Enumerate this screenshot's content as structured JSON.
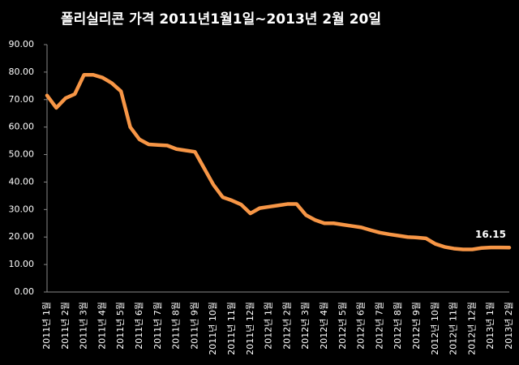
{
  "chart_data": {
    "type": "line",
    "title": "폴리실리콘 가격    2011년1월1일~2013년 2월 20일",
    "categories": [
      "2011년 1월",
      null,
      "2011년 2월",
      null,
      "2011년 3월",
      null,
      "2011년 4월",
      null,
      "2011년 5월",
      null,
      "2011년 6월",
      null,
      "2011년 7월",
      null,
      "2011년 8월",
      null,
      "2011년 9월",
      null,
      "2011년 10월",
      null,
      "2011년 11월",
      null,
      "2011년 12월",
      null,
      "2012년 1월",
      null,
      "2012년 2월",
      null,
      "2012년 3월",
      null,
      "2012년 4월",
      null,
      "2012년 5월",
      null,
      "2012년 6월",
      null,
      "2012년 7월",
      null,
      "2012년 8월",
      null,
      "2012년 9월",
      null,
      "2012년 10월",
      null,
      "2012년 11월",
      null,
      "2012년 12월",
      null,
      "2013년 1월",
      null,
      "2013년 2월"
    ],
    "series": [
      {
        "name": "폴리실리콘 가격",
        "color": "#f79646",
        "values": [
          71.5,
          67,
          70.5,
          72,
          79,
          79,
          78,
          76,
          73,
          60,
          55.5,
          53.7,
          53.5,
          53.3,
          52,
          51.5,
          51,
          45,
          39,
          34.5,
          33.3,
          31.8,
          28.6,
          30.5,
          31,
          31.5,
          32,
          32,
          28,
          26.2,
          25,
          25,
          24.5,
          24,
          23.5,
          22.5,
          21.6,
          21,
          20.5,
          20,
          19.8,
          19.5,
          17.5,
          16.4,
          15.8,
          15.5,
          15.5,
          16,
          16.2,
          16.2,
          16.15
        ]
      }
    ],
    "ylim": [
      0,
      90
    ],
    "yticks": [
      {
        "value": 0,
        "label": "0.00"
      },
      {
        "value": 10,
        "label": "10.00"
      },
      {
        "value": 20,
        "label": "20.00"
      },
      {
        "value": 30,
        "label": "30.00"
      },
      {
        "value": 40,
        "label": "40.00"
      },
      {
        "value": 50,
        "label": "50.00"
      },
      {
        "value": 60,
        "label": "60.00"
      },
      {
        "value": 70,
        "label": "70.00"
      },
      {
        "value": 80,
        "label": "80.00"
      },
      {
        "value": 90,
        "label": "90.00"
      }
    ],
    "grid": false
  }
}
